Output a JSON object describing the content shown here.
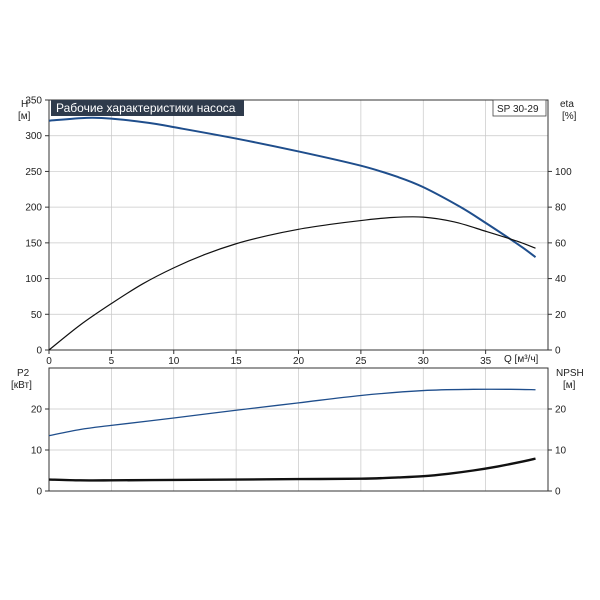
{
  "colors": {
    "blue_curve": "#1f4e8c",
    "black_curve": "#111111",
    "title_bg": "#2f3b4c",
    "grid": "#c8c8c8"
  },
  "chart_data": [
    {
      "type": "line",
      "title": "Рабочие характеристики насоса",
      "model_label": "SP 30-29",
      "ylabel_left": [
        "H",
        "[м]"
      ],
      "ylabel_right": [
        "eta",
        "[%]"
      ],
      "xlabel": "Q [м³/ч]",
      "xlim": [
        0,
        40
      ],
      "ylim_left": [
        0,
        350
      ],
      "ylim_right": [
        0,
        140
      ],
      "x_ticks": [
        "0",
        "5",
        "10",
        "15",
        "20",
        "25",
        "30",
        "35"
      ],
      "y_ticks_left": [
        "0",
        "50",
        "100",
        "150",
        "200",
        "250",
        "300",
        "350"
      ],
      "y_ticks_right": [
        "0",
        "20",
        "40",
        "60",
        "80",
        "100"
      ],
      "grid": true,
      "series": [
        {
          "color": "#1f4e8c",
          "axis": "left",
          "x": [
            0,
            3,
            5,
            8,
            10,
            15,
            20,
            25,
            28,
            30,
            33,
            35,
            37,
            38,
            39
          ],
          "y": [
            321,
            325,
            324,
            318,
            312,
            296,
            278,
            258,
            242,
            228,
            200,
            178,
            155,
            143,
            130
          ]
        },
        {
          "color": "#111111",
          "axis": "right",
          "x": [
            0,
            2.5,
            5,
            7.5,
            10,
            12.5,
            15,
            17.5,
            20,
            22.5,
            25,
            27.5,
            30,
            32.5,
            35,
            37.5,
            39
          ],
          "y": [
            0,
            14,
            26,
            37,
            46,
            53.5,
            59.5,
            64,
            67.6,
            70.3,
            72.5,
            74.2,
            74.4,
            71.7,
            66.5,
            61,
            57
          ]
        }
      ]
    },
    {
      "type": "line",
      "ylabel_left": [
        "P2",
        "[кВт]"
      ],
      "ylabel_right": [
        "NPSH",
        "[м]"
      ],
      "xlim": [
        0,
        40
      ],
      "ylim_left": [
        0,
        30
      ],
      "ylim_right": [
        0,
        30
      ],
      "y_ticks_left": [
        "0",
        "10",
        "20"
      ],
      "y_ticks_right": [
        "0",
        "10",
        "20"
      ],
      "grid": true,
      "series": [
        {
          "color": "#1f4e8c",
          "axis": "left",
          "x": [
            0,
            2.5,
            5,
            10,
            15,
            20,
            25,
            30,
            34,
            37,
            39
          ],
          "y": [
            13.5,
            15,
            16,
            17.8,
            19.7,
            21.5,
            23.3,
            24.5,
            24.8,
            24.8,
            24.7
          ]
        },
        {
          "color": "#111111",
          "axis": "right",
          "x": [
            0,
            2.5,
            5,
            10,
            15,
            20,
            25,
            28,
            30,
            32,
            34,
            36,
            38,
            39
          ],
          "y": [
            2.8,
            2.6,
            2.6,
            2.7,
            2.8,
            2.9,
            3.0,
            3.3,
            3.6,
            4.2,
            5.0,
            6.0,
            7.2,
            7.9
          ]
        }
      ]
    }
  ]
}
